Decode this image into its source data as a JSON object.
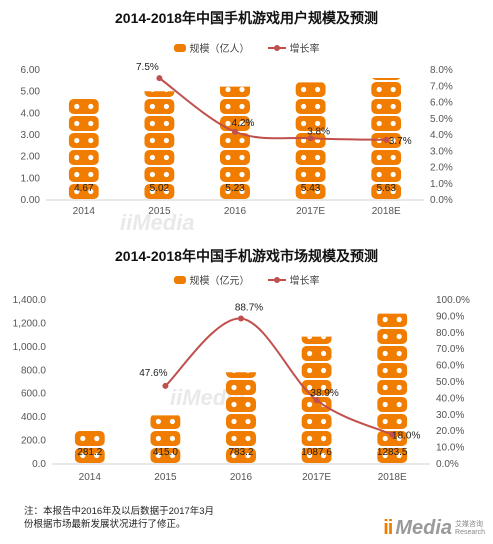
{
  "chart_data": [
    {
      "type": "bar",
      "title": "2014-2018年中国手机游戏用户规模及预测",
      "legend": [
        "规模（亿人）",
        "增长率"
      ],
      "categories": [
        "2014",
        "2015",
        "2016",
        "2017E",
        "2018E"
      ],
      "series": [
        {
          "name": "规模（亿人）",
          "type": "bar",
          "values": [
            4.67,
            5.02,
            5.23,
            5.43,
            5.63
          ],
          "labels": [
            "4.67",
            "5.02",
            "5.23",
            "5.43",
            "5.63"
          ]
        },
        {
          "name": "增长率",
          "type": "line",
          "values": [
            null,
            7.5,
            4.2,
            3.8,
            3.7
          ],
          "labels": [
            "",
            "7.5%",
            "4.2%",
            "3.8%",
            "3.7%"
          ]
        }
      ],
      "ylim": [
        0,
        6
      ],
      "yticks": [
        "0.00",
        "1.00",
        "2.00",
        "3.00",
        "4.00",
        "5.00",
        "6.00"
      ],
      "y2lim": [
        0,
        8
      ],
      "y2ticks": [
        "0.0%",
        "1.0%",
        "2.0%",
        "3.0%",
        "4.0%",
        "5.0%",
        "6.0%",
        "7.0%",
        "8.0%"
      ],
      "grid": false
    },
    {
      "type": "bar",
      "title": "2014-2018年中国手机游戏市场规模及预测",
      "legend": [
        "规模（亿元）",
        "增长率"
      ],
      "categories": [
        "2014",
        "2015",
        "2016",
        "2017E",
        "2018E"
      ],
      "series": [
        {
          "name": "规模（亿元）",
          "type": "bar",
          "values": [
            281.2,
            415.0,
            783.2,
            1087.6,
            1283.5
          ],
          "labels": [
            "281.2",
            "415.0",
            "783.2",
            "1087.6",
            "1283.5"
          ]
        },
        {
          "name": "增长率",
          "type": "line",
          "values": [
            null,
            47.6,
            88.7,
            38.9,
            18.0
          ],
          "labels": [
            "",
            "47.6%",
            "88.7%",
            "38.9%",
            "18.0%"
          ]
        }
      ],
      "ylim": [
        0,
        1400
      ],
      "yticks": [
        "0.0",
        "200.0",
        "400.0",
        "600.0",
        "800.0",
        "1,000.0",
        "1,200.0",
        "1,400.0"
      ],
      "y2lim": [
        0,
        100
      ],
      "y2ticks": [
        "0.0%",
        "10.0%",
        "20.0%",
        "30.0%",
        "40.0%",
        "50.0%",
        "60.0%",
        "70.0%",
        "80.0%",
        "90.0%",
        "100.0%"
      ],
      "grid": false
    }
  ],
  "colors": {
    "bar": "#f07d00",
    "line": "#c0504d",
    "axis_text": "#555555"
  },
  "note": {
    "line1": "注：本报告中2016年及以后数据于2017年3月",
    "line2": "份根据市场最新发展状况进行了修正。"
  },
  "logo": {
    "mark": "ii",
    "media": "Media",
    "cn": "艾媒咨询",
    "en": "Research"
  }
}
